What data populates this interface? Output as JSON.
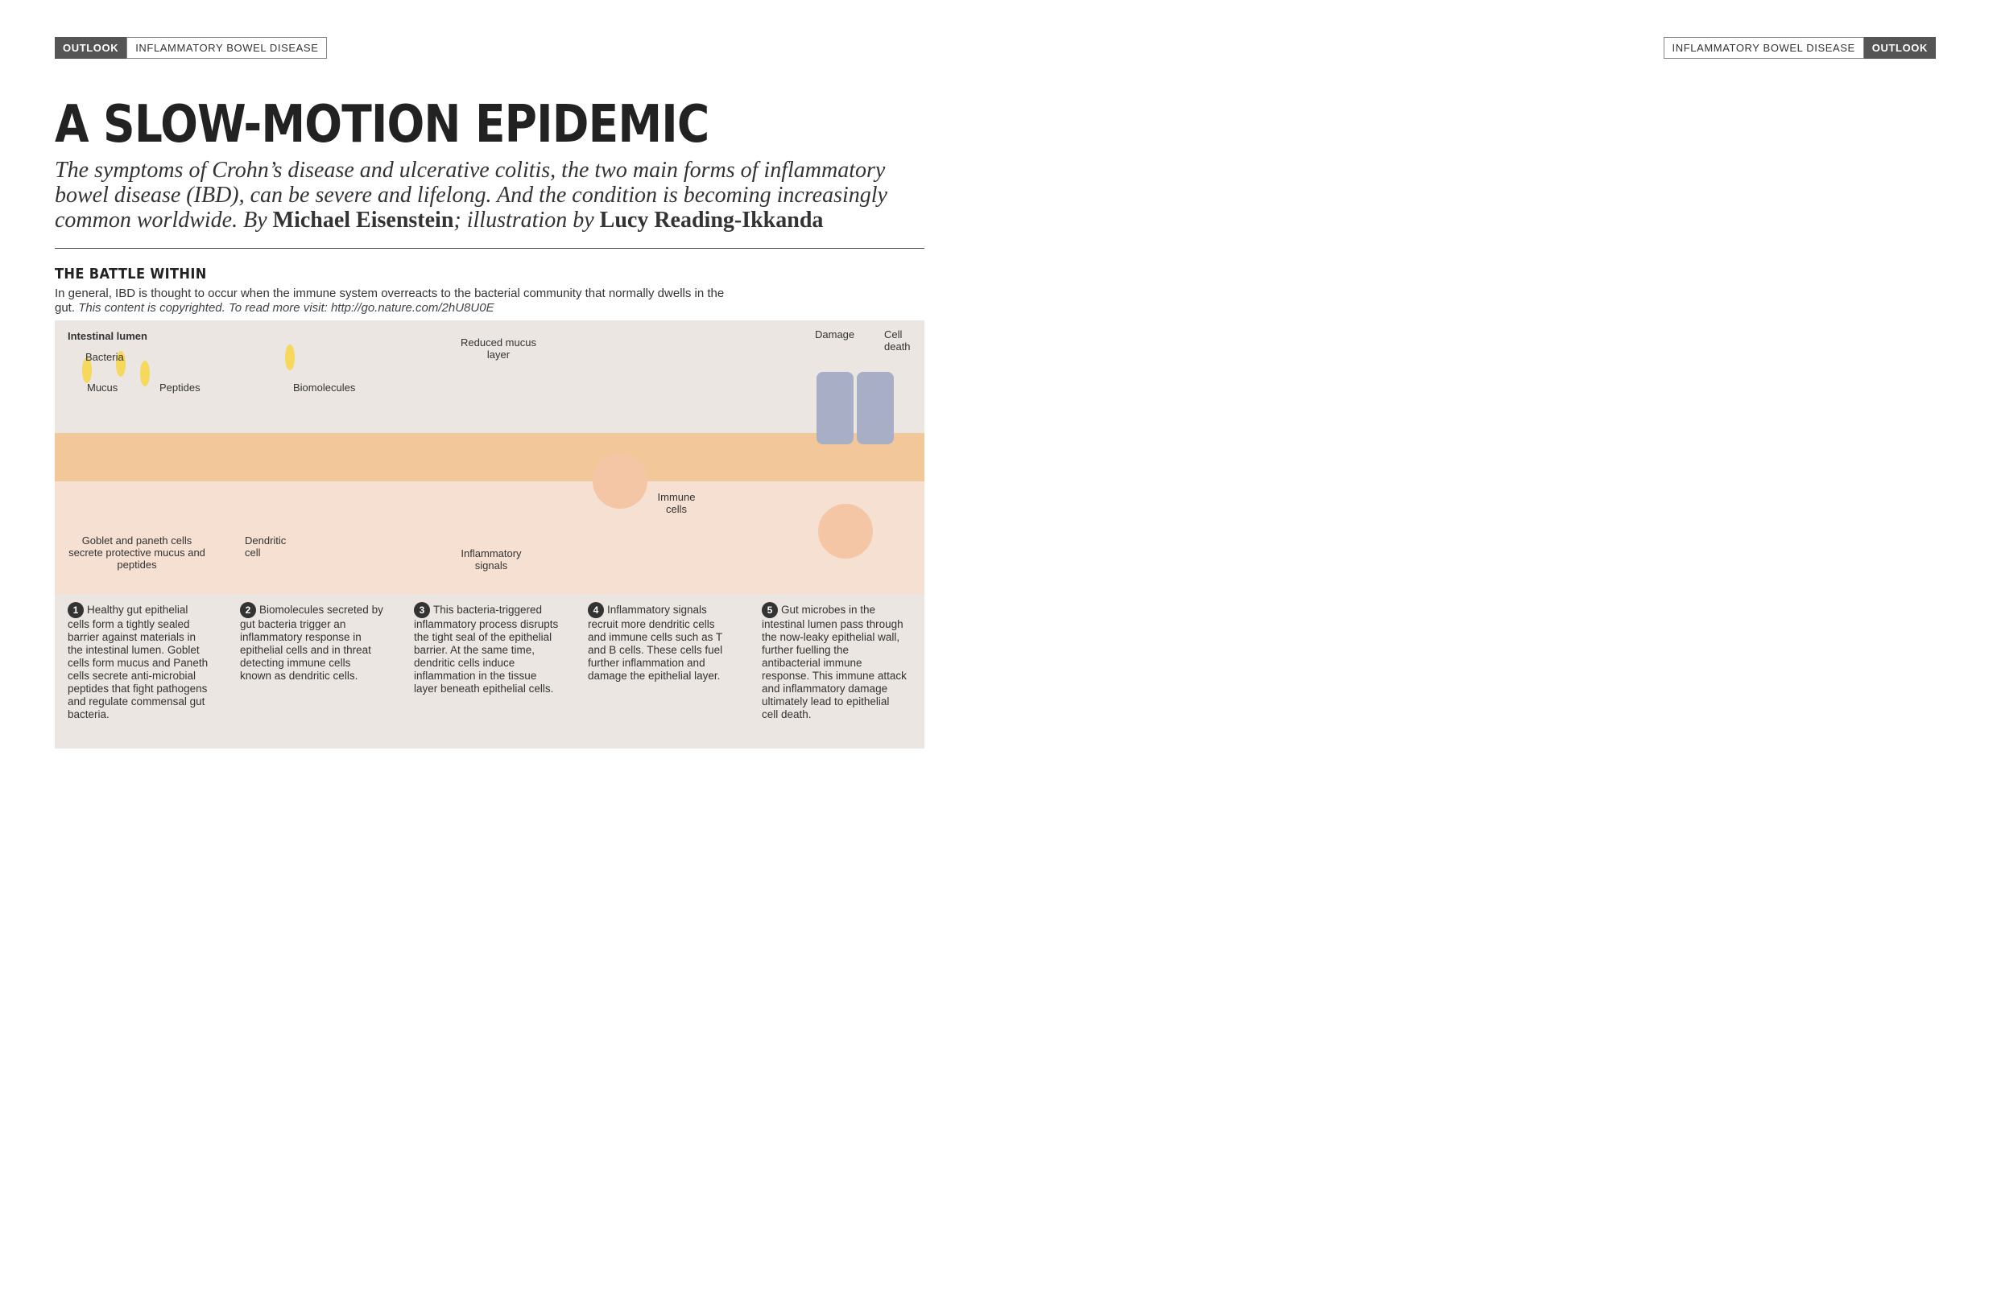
{
  "header": {
    "left": {
      "section": "OUTLOOK",
      "topic": "INFLAMMATORY BOWEL DISEASE"
    },
    "right": {
      "topic": "INFLAMMATORY BOWEL DISEASE",
      "section": "OUTLOOK"
    }
  },
  "title": "A SLOW-MOTION EPIDEMIC",
  "standfirst": {
    "text": "The symptoms of Crohn’s disease and ulcerative colitis, the two main forms of inflammatory bowel disease (IBD), can be severe and lifelong. And the condition is becoming increasingly common worldwide.",
    "by": "By",
    "author": "Michael Eisenstein",
    "illus_prefix": "; illustration by",
    "illustrator": "Lucy Reading-Ikkanda"
  },
  "battle": {
    "heading": "THE BATTLE WITHIN",
    "intro": "In general, IBD is thought to occur when the immune system overreacts to the bacterial community that normally dwells in the gut.",
    "copyright": "This content is copyrighted. To read more visit: http://go.nature.com/2hU8U0E",
    "labels": {
      "lumen": "Intestinal lumen",
      "bacteria": "Bacteria",
      "mucus": "Mucus",
      "peptides": "Peptides",
      "biomolecules": "Biomolecules",
      "reduced_mucus": "Reduced mucus layer",
      "damage": "Damage",
      "cell_death": "Cell death",
      "goblet": "Goblet and paneth cells secrete protective mucus and peptides",
      "dendritic": "Dendritic cell",
      "inflam_signals": "Inflammatory signals",
      "immune_cells": "Immune cells"
    },
    "steps": [
      {
        "n": "1",
        "text": "Healthy gut epithelial cells form a tightly sealed barrier against materials in the intestinal lumen. Goblet cells form mucus and Paneth cells secrete anti-microbial peptides that fight pathogens and regulate commensal gut bacteria."
      },
      {
        "n": "2",
        "text": "Biomolecules secreted by gut bacteria trigger an inflammatory response in epithelial cells and in threat detecting immune cells known as dendritic cells."
      },
      {
        "n": "3",
        "text": "This bacteria-triggered inflammatory process disrupts the tight seal of the epithelial barrier. At the same time, dendritic cells induce inflammation in the tissue layer beneath epithelial cells."
      },
      {
        "n": "4",
        "text": "Inflammatory signals recruit more dendritic cells and immune cells such as T and B cells. These cells fuel further inflammation and damage the epithelial layer."
      },
      {
        "n": "5",
        "text": "Gut microbes in the intestinal lumen pass through the now-leaky epithelial wall, further fuelling the antibacterial immune response. This immune attack and inflammatory damage ultimately lead to epithelial cell death."
      }
    ]
  }
}
